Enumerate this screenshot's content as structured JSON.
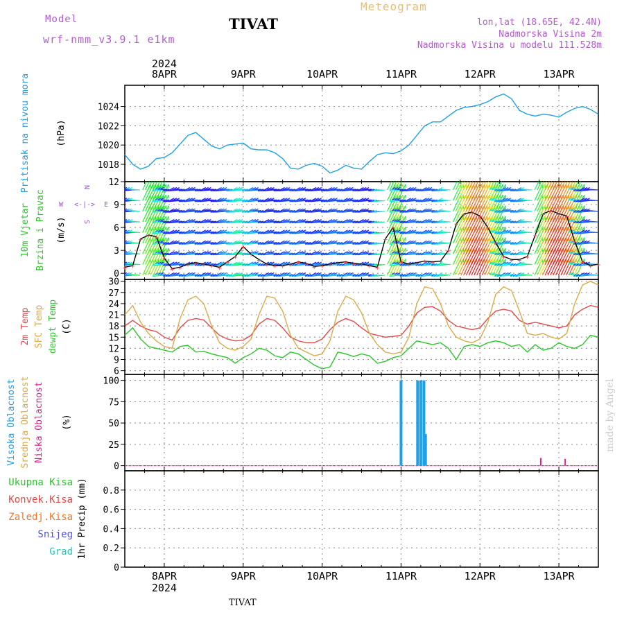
{
  "header": {
    "model_label": "Model",
    "model_name": "wrf-nmm_v3.9.1 e1km",
    "station": "TIVAT",
    "product": "Meteogram",
    "coords": "lon,lat (18.65E, 42.4N)",
    "elevation": "Nadmorska Visina 2m",
    "model_elevation": "Nadmorska Visina u modelu 111.528m",
    "credit": "made by Angel",
    "footer_station": "TIVAT"
  },
  "colors": {
    "pressure": "#1ea0e6",
    "temp2m": "#e64646",
    "sfc": "#dcaa46",
    "dewpt": "#28c828",
    "high_cloud": "#1ea0e6",
    "mid_cloud": "#dcaa46",
    "low_cloud": "#dc1e8c",
    "total_precip": "#28c828",
    "conv_precip": "#e64646",
    "frozen_precip": "#f07828",
    "snow": "#5050e6",
    "graupel": "#28c8b4",
    "wind_label": "#28c828",
    "compass": "#a050c8"
  },
  "chart_data": [
    {
      "type": "line",
      "panel": "pressure",
      "ylabel_lines": [
        "Pritisak na nivou mora",
        "(hPa)"
      ],
      "x_tick_labels": [
        "8APR",
        "9APR",
        "10APR",
        "11APR",
        "12APR",
        "13APR"
      ],
      "top_year_label": "2024",
      "bottom_year_label": "2024",
      "ylim": [
        1016.2,
        1026.2
      ],
      "yticks": [
        1018,
        1020,
        1022,
        1024
      ],
      "grid": true,
      "x_days": [
        -0.5,
        -0.4,
        -0.3,
        -0.2,
        -0.1,
        0.0,
        0.1,
        0.2,
        0.3,
        0.4,
        0.5,
        0.6,
        0.7,
        0.8,
        0.9,
        1.0,
        1.1,
        1.2,
        1.3,
        1.4,
        1.5,
        1.6,
        1.7,
        1.8,
        1.9,
        2.0,
        2.1,
        2.2,
        2.3,
        2.4,
        2.5,
        2.6,
        2.7,
        2.8,
        2.9,
        3.0,
        3.1,
        3.2,
        3.3,
        3.4,
        3.5,
        3.6,
        3.7,
        3.8,
        3.9,
        4.0,
        4.1,
        4.2,
        4.3,
        4.4,
        4.5,
        4.6,
        4.7,
        4.8,
        4.9,
        5.0,
        5.1,
        5.2,
        5.3,
        5.4,
        5.5
      ],
      "series": [
        {
          "name": "Pritisak na nivou mora",
          "values": [
            1019.0,
            1018.0,
            1017.5,
            1017.8,
            1018.6,
            1018.7,
            1019.2,
            1020.1,
            1021.0,
            1021.3,
            1020.6,
            1019.9,
            1019.6,
            1020.0,
            1020.1,
            1020.2,
            1019.6,
            1019.5,
            1019.5,
            1019.2,
            1018.6,
            1017.6,
            1017.5,
            1017.9,
            1018.1,
            1017.8,
            1017.1,
            1017.4,
            1017.9,
            1017.6,
            1017.5,
            1018.3,
            1019.0,
            1019.2,
            1019.1,
            1019.4,
            1020.0,
            1021.0,
            1022.0,
            1022.4,
            1022.4,
            1023.0,
            1023.6,
            1023.9,
            1024.0,
            1024.2,
            1024.5,
            1025.0,
            1025.3,
            1024.8,
            1023.6,
            1023.2,
            1023.0,
            1023.2,
            1023.1,
            1022.9,
            1023.4,
            1023.8,
            1024.0,
            1023.7,
            1023.2
          ]
        }
      ]
    },
    {
      "type": "line",
      "panel": "wind",
      "ylabel_lines": [
        "10m Vjetar",
        "Brzina i Pravac",
        "(m/s)"
      ],
      "compass_labels": {
        "n": "N",
        "s": "S",
        "w": "W",
        "e": "E"
      },
      "ylim": [
        -0.8,
        12
      ],
      "yticks": [
        0,
        3,
        6,
        9,
        12
      ],
      "grid": true,
      "x_days": [
        -0.5,
        -0.4,
        -0.3,
        -0.2,
        -0.1,
        0.0,
        0.1,
        0.2,
        0.3,
        0.4,
        0.5,
        0.6,
        0.7,
        0.8,
        0.9,
        1.0,
        1.1,
        1.2,
        1.3,
        1.4,
        1.5,
        1.6,
        1.7,
        1.8,
        1.9,
        2.0,
        2.1,
        2.2,
        2.3,
        2.4,
        2.5,
        2.6,
        2.7,
        2.8,
        2.9,
        3.0,
        3.1,
        3.2,
        3.3,
        3.4,
        3.5,
        3.6,
        3.7,
        3.8,
        3.9,
        4.0,
        4.1,
        4.2,
        4.3,
        4.4,
        4.5,
        4.6,
        4.7,
        4.8,
        4.9,
        5.0,
        5.1,
        5.2,
        5.3,
        5.4,
        5.5
      ],
      "series": [
        {
          "name": "Brzina",
          "values": [
            0.8,
            1.0,
            4.5,
            5.0,
            4.8,
            2.0,
            0.6,
            0.8,
            1.2,
            1.4,
            1.2,
            1.0,
            0.8,
            1.5,
            2.2,
            3.5,
            2.5,
            1.8,
            1.2,
            1.0,
            1.0,
            1.2,
            1.5,
            1.3,
            0.9,
            1.0,
            1.2,
            1.4,
            1.5,
            1.3,
            1.2,
            1.0,
            0.8,
            4.5,
            6.0,
            1.5,
            1.2,
            1.4,
            1.6,
            1.5,
            1.6,
            3.0,
            6.5,
            7.8,
            8.0,
            7.5,
            6.0,
            4.0,
            2.2,
            1.8,
            1.8,
            2.2,
            5.0,
            7.8,
            8.2,
            7.8,
            7.5,
            4.2,
            1.5,
            1.0,
            1.2
          ]
        }
      ]
    },
    {
      "type": "line",
      "panel": "temperature",
      "ylabel_lines": [
        "2m Temp",
        "SFC Temp",
        "dewpt Temp",
        "(C)"
      ],
      "ylim": [
        5,
        30.5
      ],
      "yticks": [
        6,
        9,
        12,
        15,
        18,
        21,
        24,
        27,
        30
      ],
      "grid": true,
      "x_days": [
        -0.5,
        -0.4,
        -0.3,
        -0.2,
        -0.1,
        0.0,
        0.1,
        0.2,
        0.3,
        0.4,
        0.5,
        0.6,
        0.7,
        0.8,
        0.9,
        1.0,
        1.1,
        1.2,
        1.3,
        1.4,
        1.5,
        1.6,
        1.7,
        1.8,
        1.9,
        2.0,
        2.1,
        2.2,
        2.3,
        2.4,
        2.5,
        2.6,
        2.7,
        2.8,
        2.9,
        3.0,
        3.1,
        3.2,
        3.3,
        3.4,
        3.5,
        3.6,
        3.7,
        3.8,
        3.9,
        4.0,
        4.1,
        4.2,
        4.3,
        4.4,
        4.5,
        4.6,
        4.7,
        4.8,
        4.9,
        5.0,
        5.1,
        5.2,
        5.3,
        5.4,
        5.5
      ],
      "series": [
        {
          "name": "2m Temp",
          "values": [
            18.0,
            19.5,
            18.0,
            17.0,
            16.5,
            15.0,
            14.2,
            17.5,
            19.5,
            20.0,
            19.6,
            17.5,
            15.5,
            14.5,
            14.0,
            14.2,
            15.5,
            18.5,
            20.0,
            19.5,
            17.5,
            15.0,
            14.0,
            13.5,
            13.5,
            14.5,
            17.0,
            19.0,
            20.0,
            19.2,
            17.5,
            16.0,
            15.5,
            15.0,
            15.2,
            15.5,
            18.0,
            21.5,
            23.0,
            23.2,
            22.0,
            19.5,
            18.0,
            17.5,
            17.0,
            17.5,
            20.0,
            22.0,
            22.5,
            22.0,
            19.5,
            18.5,
            19.0,
            18.5,
            18.0,
            17.5,
            18.0,
            21.0,
            22.5,
            23.5,
            23.0
          ]
        },
        {
          "name": "SFC Temp",
          "values": [
            21.0,
            23.5,
            19.0,
            16.0,
            14.0,
            12.5,
            12.0,
            20.0,
            25.0,
            26.0,
            24.0,
            18.0,
            13.5,
            12.0,
            11.5,
            12.5,
            14.5,
            21.0,
            26.0,
            25.5,
            22.0,
            15.5,
            12.0,
            11.0,
            10.0,
            10.5,
            14.0,
            22.0,
            26.0,
            25.0,
            21.5,
            16.0,
            13.0,
            11.0,
            10.5,
            11.0,
            15.0,
            24.0,
            28.5,
            28.0,
            24.0,
            18.0,
            15.0,
            14.0,
            13.5,
            14.5,
            19.0,
            26.5,
            28.5,
            27.5,
            22.0,
            16.0,
            15.5,
            16.0,
            15.0,
            14.5,
            16.0,
            24.0,
            29.0,
            30.0,
            29.0
          ]
        },
        {
          "name": "dewpt Temp",
          "values": [
            15.5,
            17.5,
            14.5,
            12.5,
            12.0,
            11.5,
            11.0,
            12.5,
            12.8,
            11.0,
            11.2,
            10.5,
            10.0,
            9.5,
            8.0,
            9.5,
            10.5,
            12.0,
            11.5,
            10.0,
            9.5,
            11.0,
            10.5,
            9.0,
            7.5,
            6.5,
            7.0,
            11.0,
            10.5,
            9.8,
            10.5,
            10.0,
            8.0,
            8.5,
            9.5,
            10.0,
            12.0,
            14.0,
            13.5,
            13.0,
            13.5,
            12.0,
            9.0,
            12.5,
            13.0,
            12.5,
            13.5,
            14.0,
            13.5,
            12.5,
            13.0,
            11.0,
            13.0,
            11.5,
            12.0,
            13.5,
            12.5,
            12.0,
            13.0,
            15.5,
            15.0
          ]
        }
      ]
    },
    {
      "type": "bar",
      "panel": "clouds",
      "ylabel_lines": [
        "Visoka Oblacnost",
        "Srednja Oblacnost",
        "Niska Oblacnost",
        "(%)"
      ],
      "ylim": [
        -6,
        107
      ],
      "yticks": [
        0,
        25,
        50,
        75,
        100
      ],
      "grid": true,
      "series": [
        {
          "name": "Visoka Oblacnost",
          "bars": [
            {
              "x": 3.0,
              "value": 100
            },
            {
              "x": 3.21,
              "value": 100
            },
            {
              "x": 3.25,
              "value": 100
            },
            {
              "x": 3.29,
              "value": 100
            },
            {
              "x": 3.31,
              "value": 37
            }
          ]
        },
        {
          "name": "Srednja Oblacnost",
          "bars": []
        },
        {
          "name": "Niska Oblacnost",
          "bars": [
            {
              "x": 4.77,
              "value": 9
            },
            {
              "x": 5.08,
              "value": 8
            }
          ]
        }
      ]
    },
    {
      "type": "bar",
      "panel": "precip",
      "ylabel_lines": [
        "1hr Precip (mm)"
      ],
      "legend": [
        "Ukupna Kisa",
        "Konvek.Kisa",
        "Zaledj.Kisa",
        "Snijeg",
        "Grad"
      ],
      "ylim": [
        0,
        1.0
      ],
      "yticks": [
        0,
        0.2,
        0.4,
        0.6,
        0.8
      ],
      "grid": true,
      "series": []
    }
  ]
}
